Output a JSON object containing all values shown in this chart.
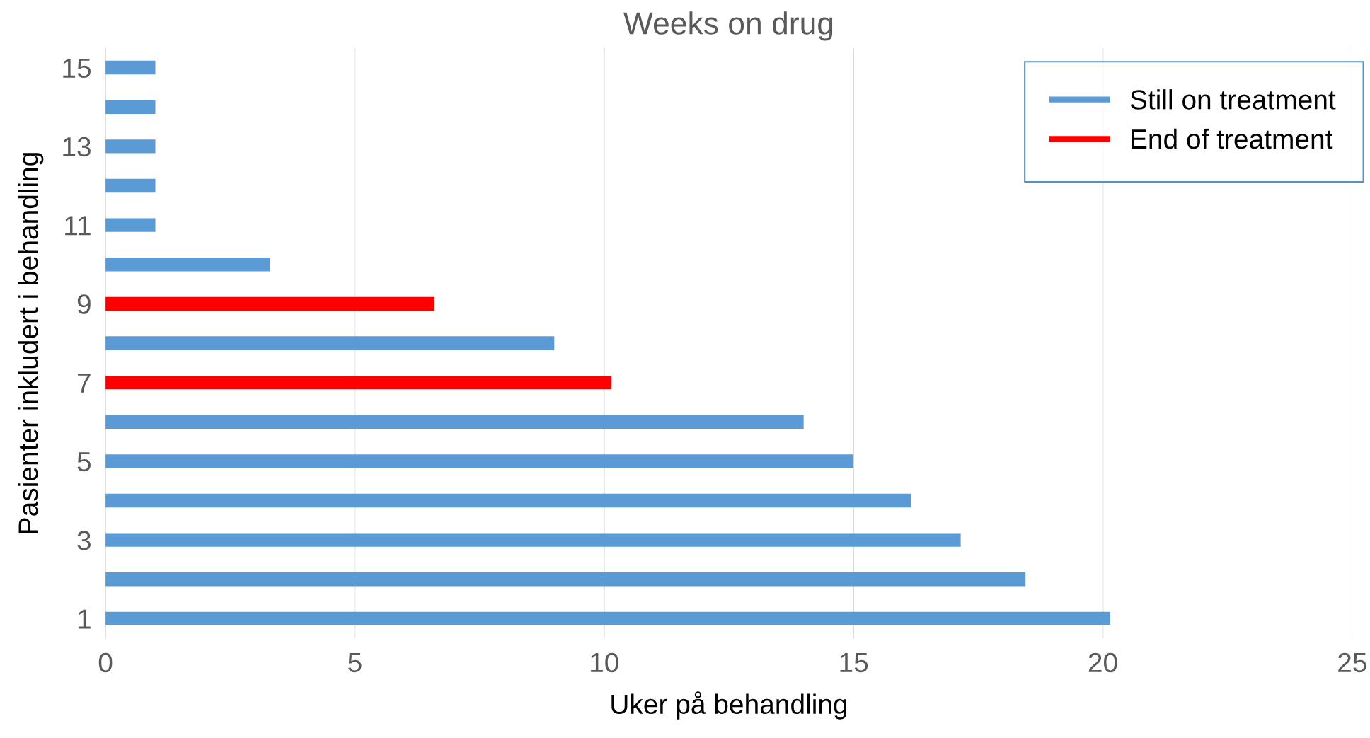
{
  "chart_data": {
    "type": "bar",
    "orientation": "horizontal",
    "title": "Weeks on drug",
    "xlabel": "Uker på behandling",
    "ylabel": "Pasienter inkludert i behandling",
    "categories": [
      "15",
      null,
      "13",
      null,
      "11",
      null,
      "9",
      null,
      "7",
      null,
      "5",
      null,
      "3",
      null,
      "1"
    ],
    "series": [
      {
        "name": "Still on treatment",
        "color": "#5b9bd5",
        "values": [
          1.0,
          1.0,
          1.0,
          1.0,
          1.0,
          3.3,
          null,
          9.0,
          null,
          14.0,
          15.0,
          16.15,
          17.15,
          18.45,
          20.15
        ]
      },
      {
        "name": "End of treatment",
        "color": "#ff0000",
        "values": [
          null,
          null,
          null,
          null,
          null,
          null,
          6.6,
          null,
          10.15,
          null,
          null,
          null,
          null,
          null,
          null
        ]
      }
    ],
    "xlim": [
      0,
      25
    ],
    "xticks": [
      0,
      5,
      10,
      15,
      20,
      25
    ],
    "grid": "x",
    "legend": "top right"
  }
}
